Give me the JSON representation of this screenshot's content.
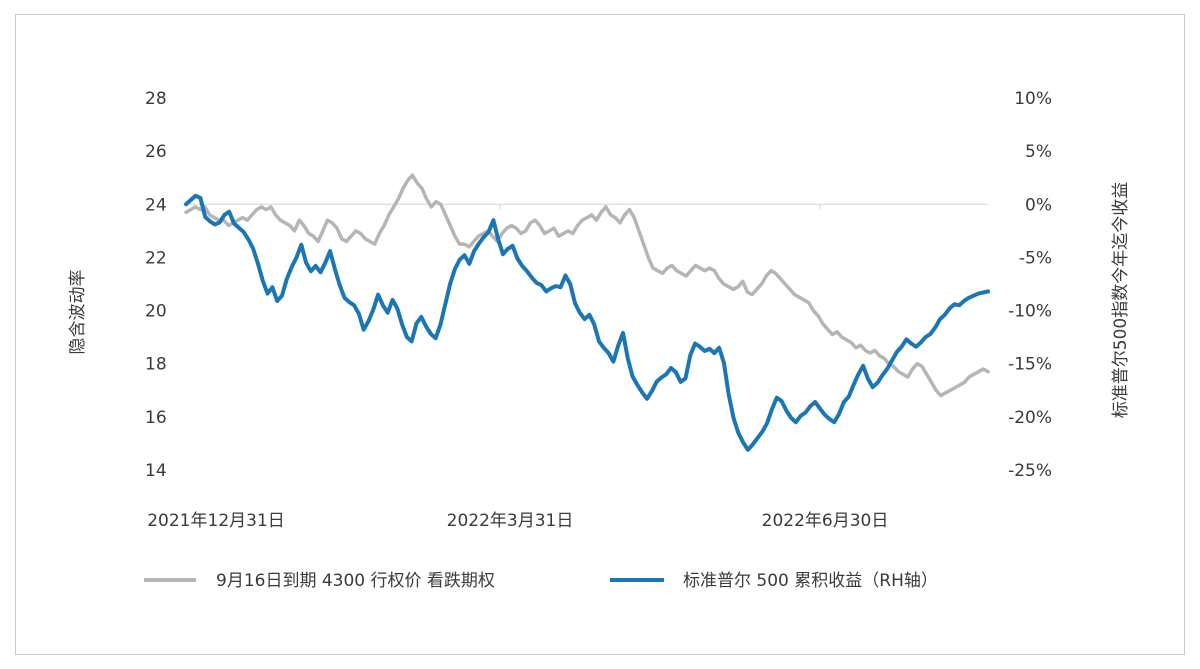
{
  "chart_data": {
    "type": "line",
    "x_axis": {
      "tick_labels": [
        "2021年12月31日",
        "2022年3月31日",
        "2022年6月30日"
      ]
    },
    "y_left": {
      "label": "隐含波动率",
      "ticks": [
        "28",
        "26",
        "24",
        "22",
        "20",
        "18",
        "16",
        "14"
      ],
      "range": [
        14,
        28
      ]
    },
    "y_right": {
      "label": "标准普尔500指数今年迄今收益",
      "ticks": [
        "10%",
        "5%",
        "0%",
        "-5%",
        "-10%",
        "-15%",
        "-20%",
        "-25%"
      ],
      "range": [
        -25,
        10
      ]
    },
    "grid": "zero-line",
    "legend_position": "bottom",
    "series": [
      {
        "name": "9月16日到期 4300 行权价 看跌期权",
        "axis": "left",
        "color": "#b5b5b5",
        "values": [
          23.7,
          23.8,
          23.9,
          23.8,
          23.9,
          23.6,
          23.5,
          23.4,
          23.4,
          23.2,
          23.3,
          23.4,
          23.5,
          23.4,
          23.6,
          23.8,
          23.9,
          23.8,
          23.9,
          23.6,
          23.4,
          23.3,
          23.2,
          23.0,
          23.4,
          23.2,
          22.9,
          22.8,
          22.6,
          23.0,
          23.4,
          23.3,
          23.1,
          22.7,
          22.6,
          22.8,
          23.0,
          22.9,
          22.7,
          22.6,
          22.5,
          22.9,
          23.2,
          23.6,
          23.9,
          24.2,
          24.6,
          24.9,
          25.1,
          24.8,
          24.6,
          24.2,
          23.9,
          24.1,
          24.0,
          23.6,
          23.2,
          22.8,
          22.5,
          22.5,
          22.4,
          22.6,
          22.8,
          22.9,
          23.0,
          22.8,
          22.6,
          22.9,
          23.1,
          23.2,
          23.1,
          22.9,
          23.0,
          23.3,
          23.4,
          23.2,
          22.9,
          23.0,
          23.1,
          22.8,
          22.9,
          23.0,
          22.9,
          23.2,
          23.4,
          23.5,
          23.6,
          23.4,
          23.7,
          23.9,
          23.6,
          23.5,
          23.3,
          23.6,
          23.8,
          23.5,
          23.0,
          22.5,
          22.0,
          21.6,
          21.5,
          21.4,
          21.6,
          21.7,
          21.5,
          21.4,
          21.3,
          21.5,
          21.7,
          21.6,
          21.5,
          21.6,
          21.5,
          21.2,
          21.0,
          20.9,
          20.8,
          20.9,
          21.1,
          20.7,
          20.6,
          20.8,
          21.0,
          21.3,
          21.5,
          21.4,
          21.2,
          21.0,
          20.8,
          20.6,
          20.5,
          20.4,
          20.3,
          20.0,
          19.8,
          19.5,
          19.3,
          19.1,
          19.2,
          19.0,
          18.9,
          18.8,
          18.6,
          18.7,
          18.5,
          18.4,
          18.5,
          18.3,
          18.2,
          18.0,
          17.9,
          17.7,
          17.6,
          17.5,
          17.8,
          18.0,
          17.9,
          17.6,
          17.3,
          17.0,
          16.8,
          16.9,
          17.0,
          17.1,
          17.2,
          17.3,
          17.5,
          17.6,
          17.7,
          17.8,
          17.7
        ]
      },
      {
        "name": "标准普尔 500 累积收益（RH轴）",
        "axis": "right",
        "color": "#1a76b4",
        "values": [
          0.0,
          0.4,
          0.8,
          0.6,
          -1.2,
          -1.6,
          -1.9,
          -1.7,
          -1.0,
          -0.7,
          -1.8,
          -2.2,
          -2.6,
          -3.3,
          -4.2,
          -5.6,
          -7.2,
          -8.4,
          -7.8,
          -9.1,
          -8.6,
          -7.0,
          -5.9,
          -5.0,
          -3.8,
          -5.5,
          -6.3,
          -5.8,
          -6.4,
          -5.5,
          -4.4,
          -6.1,
          -7.6,
          -8.8,
          -9.2,
          -9.5,
          -10.3,
          -11.8,
          -11.0,
          -9.9,
          -8.5,
          -9.5,
          -10.2,
          -9.0,
          -9.8,
          -11.3,
          -12.5,
          -12.9,
          -11.2,
          -10.6,
          -11.5,
          -12.2,
          -12.6,
          -11.3,
          -9.4,
          -7.5,
          -6.1,
          -5.2,
          -4.8,
          -5.6,
          -4.4,
          -3.7,
          -3.1,
          -2.6,
          -1.5,
          -3.3,
          -4.7,
          -4.2,
          -3.9,
          -5.1,
          -5.8,
          -6.3,
          -6.9,
          -7.4,
          -7.6,
          -8.2,
          -7.9,
          -7.7,
          -7.8,
          -6.7,
          -7.5,
          -9.3,
          -10.2,
          -10.8,
          -10.4,
          -11.3,
          -12.9,
          -13.5,
          -14.0,
          -14.8,
          -13.3,
          -12.1,
          -14.5,
          -16.2,
          -17.0,
          -17.7,
          -18.3,
          -17.6,
          -16.7,
          -16.3,
          -16.0,
          -15.4,
          -15.8,
          -16.7,
          -16.4,
          -14.2,
          -13.1,
          -13.4,
          -13.8,
          -13.6,
          -14.0,
          -13.5,
          -14.9,
          -17.9,
          -20.1,
          -21.5,
          -22.4,
          -23.1,
          -22.6,
          -22.0,
          -21.4,
          -20.6,
          -19.3,
          -18.2,
          -18.5,
          -19.4,
          -20.1,
          -20.5,
          -19.9,
          -19.6,
          -19.0,
          -18.6,
          -19.2,
          -19.8,
          -20.2,
          -20.5,
          -19.7,
          -18.6,
          -18.1,
          -17.0,
          -16.0,
          -15.2,
          -16.4,
          -17.2,
          -16.8,
          -16.1,
          -15.5,
          -14.7,
          -13.9,
          -13.4,
          -12.7,
          -13.1,
          -13.4,
          -13.0,
          -12.5,
          -12.2,
          -11.6,
          -10.8,
          -10.4,
          -9.8,
          -9.4,
          -9.5,
          -9.1,
          -8.8,
          -8.6,
          -8.4,
          -8.3,
          -8.2
        ]
      }
    ]
  }
}
